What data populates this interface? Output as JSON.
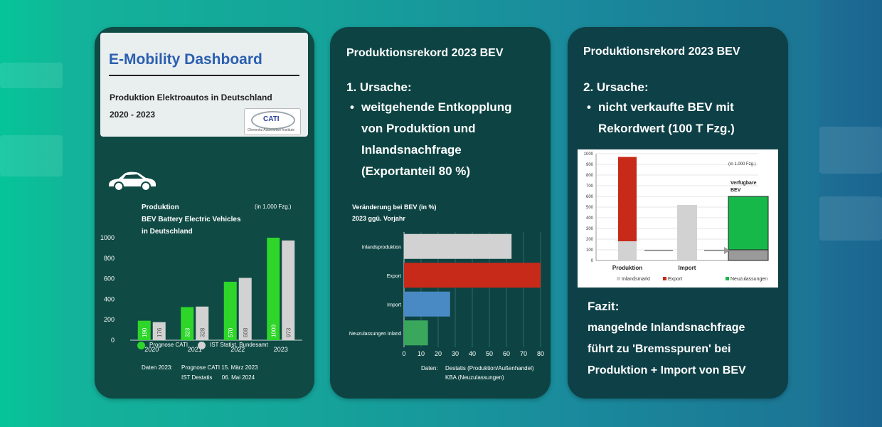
{
  "panel1": {
    "title": "E-Mobility Dashboard",
    "subtitle_line1": "Produktion Elektroautos in Deutschland",
    "subtitle_line2": "2020 - 2023",
    "logo_text": "CATI",
    "logo_sub": "Chemnitz Automotive Institute",
    "chart_title_line1": "Produktion",
    "chart_title_line2": "BEV Battery Electric Vehicles",
    "chart_title_line3": "in Deutschland",
    "unit_note": "(in 1.000 Fzg.)",
    "legend_prognose": "Prognose CATI",
    "legend_ist": "IST Statist. Bundesamt",
    "source_label": "Daten 2023:",
    "source_line1": "Prognose CATI 15. März 2023",
    "source_line2": "IST Destatis      06. Mai 2024",
    "car_icon": "car-icon"
  },
  "panel2": {
    "heading": "Produktionsrekord 2023 BEV",
    "cause_title": "1. Ursache:",
    "bullet_line1": "weitgehende Entkopplung",
    "bullet_line2": "von Produktion und",
    "bullet_line3": "Inlandsnachfrage",
    "bullet_line4": "(Exportanteil 80 %)",
    "chart_title_line1": "Veränderung bei BEV (in %)",
    "chart_title_line2": "2023 ggü. Vorjahr",
    "source_label": "Daten:",
    "source_line1": "Destatis (Produktion/Außenhandel)",
    "source_line2": "KBA (Neuzulassungen)"
  },
  "panel3": {
    "heading": "Produktionsrekord 2023 BEV",
    "cause_title": "2. Ursache:",
    "bullet_line1": "nicht verkaufte BEV mit",
    "bullet_line2": "Rekordwert  (100 T Fzg.)",
    "unit_note": "(in 1.000 Fzg.)",
    "avail_label_line1": "Verfügbare",
    "avail_label_line2": "BEV",
    "legend_inland": "Inlandsmarkt",
    "legend_export": "Export",
    "legend_neu": "Neuzulassungen",
    "fazit_title": "Fazit:",
    "fazit_line1": "mangelnde Inlandsnachfrage",
    "fazit_line2": "führt zu 'Bremsspuren' bei",
    "fazit_line3": "Produktion + Import von BEV"
  },
  "colors": {
    "green": "#2ed62a",
    "grey": "#d2d2d2",
    "red": "#c82a1a",
    "blue": "#4a8ac4",
    "teal_green": "#3aa85c",
    "bright_green": "#16b84a"
  },
  "chart_data": [
    {
      "type": "bar",
      "categories": [
        "2020",
        "2021",
        "2022",
        "2023"
      ],
      "series": [
        {
          "name": "Prognose CATI",
          "values": [
            190,
            323,
            570,
            1000
          ]
        },
        {
          "name": "IST Statist. Bundesamt",
          "values": [
            176,
            328,
            608,
            973
          ]
        }
      ],
      "title": "Produktion BEV Battery Electric Vehicles in Deutschland",
      "ylabel": "(in 1.000 Fzg.)",
      "ylim": [
        0,
        1000
      ],
      "yticks": [
        0,
        200,
        400,
        600,
        800,
        1000
      ],
      "data_labels": true,
      "legend": "bottom"
    },
    {
      "type": "bar",
      "orientation": "horizontal",
      "categories": [
        "Inlandsproduktion",
        "Export",
        "Import",
        "Neuzulassungen Inland"
      ],
      "values": [
        63,
        80,
        27,
        14
      ],
      "title": "Veränderung bei BEV (in %) 2023 ggü. Vorjahr",
      "xlim": [
        0,
        80
      ],
      "xticks": [
        0,
        10,
        20,
        30,
        40,
        50,
        60,
        70,
        80
      ],
      "grid": true
    },
    {
      "type": "bar",
      "stacked": true,
      "categories": [
        "Produktion",
        "Import",
        "Verfügbare BEV"
      ],
      "series": [
        {
          "name": "Inlandsmarkt",
          "values": [
            180,
            520,
            100
          ]
        },
        {
          "name": "Export",
          "values": [
            790,
            0,
            0
          ]
        },
        {
          "name": "Neuzulassungen",
          "values": [
            0,
            0,
            500
          ]
        }
      ],
      "ylabel": "(in 1.000 Fzg.)",
      "ylim": [
        0,
        1000
      ],
      "yticks": [
        0,
        100,
        200,
        300,
        400,
        500,
        600,
        700,
        800,
        900,
        1000
      ],
      "legend": "bottom"
    }
  ]
}
